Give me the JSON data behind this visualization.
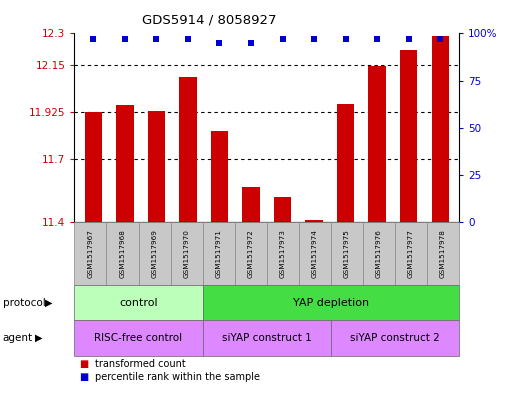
{
  "title": "GDS5914 / 8058927",
  "samples": [
    "GSM1517967",
    "GSM1517968",
    "GSM1517969",
    "GSM1517970",
    "GSM1517971",
    "GSM1517972",
    "GSM1517973",
    "GSM1517974",
    "GSM1517975",
    "GSM1517976",
    "GSM1517977",
    "GSM1517978"
  ],
  "bar_values": [
    11.925,
    11.96,
    11.93,
    12.09,
    11.835,
    11.565,
    11.52,
    11.41,
    11.965,
    12.145,
    12.22,
    12.29
  ],
  "percentile_values": [
    97,
    97,
    97,
    97,
    95,
    95,
    97,
    97,
    97,
    97,
    97,
    97
  ],
  "y_min": 11.4,
  "y_max": 12.3,
  "y_ticks": [
    11.4,
    11.7,
    11.925,
    12.15,
    12.3
  ],
  "y_tick_labels": [
    "11.4",
    "11.7",
    "11.925",
    "12.15",
    "12.3"
  ],
  "right_y_ticks": [
    0,
    25,
    50,
    75,
    100
  ],
  "right_y_tick_labels": [
    "0",
    "25",
    "50",
    "75",
    "100%"
  ],
  "bar_color": "#cc0000",
  "percentile_color": "#0000cc",
  "prot_groups": [
    {
      "label": "control",
      "start": 0,
      "end": 3,
      "color": "#bbffbb"
    },
    {
      "label": "YAP depletion",
      "start": 4,
      "end": 11,
      "color": "#44dd44"
    }
  ],
  "agent_groups": [
    {
      "label": "RISC-free control",
      "start": 0,
      "end": 3,
      "color": "#dd88ff"
    },
    {
      "label": "siYAP construct 1",
      "start": 4,
      "end": 7,
      "color": "#dd88ff"
    },
    {
      "label": "siYAP construct 2",
      "start": 8,
      "end": 11,
      "color": "#dd88ff"
    }
  ],
  "legend_items": [
    {
      "label": "transformed count",
      "color": "#cc0000"
    },
    {
      "label": "percentile rank within the sample",
      "color": "#0000cc"
    }
  ],
  "background_color": "#ffffff",
  "sample_box_color": "#c8c8c8"
}
